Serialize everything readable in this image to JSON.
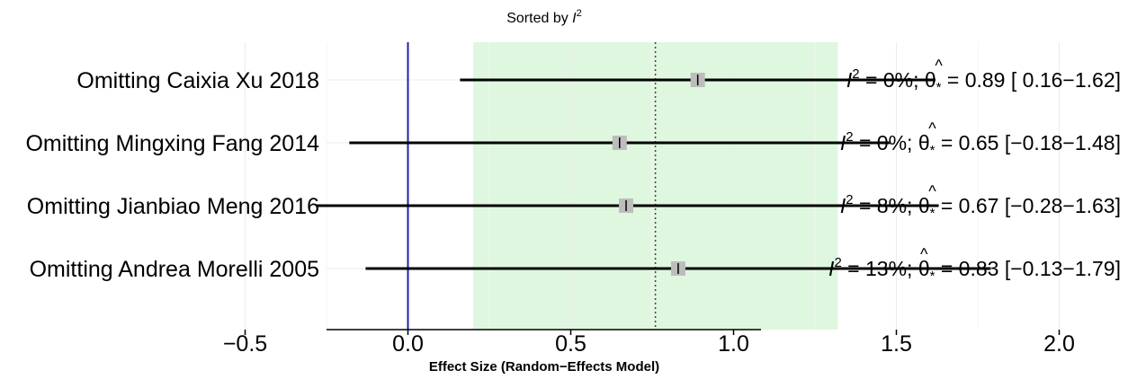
{
  "chart_data": {
    "type": "forest",
    "title": "Sorted by",
    "title_symbol": "I",
    "title_sup": "2",
    "xlabel": "Effect Size (Random−Effects Model)",
    "xlim": [
      -0.5,
      2.2
    ],
    "xticks": [
      -0.5,
      0.0,
      0.5,
      1.0,
      1.5,
      2.0
    ],
    "xtick_labels": [
      "−0.5",
      "0.0",
      "0.5",
      "1.0",
      "1.5",
      "2.0"
    ],
    "reference_line": 0.0,
    "pooled_estimate": 0.76,
    "pooled_interval": [
      0.2,
      1.32
    ],
    "grid": true,
    "colors": {
      "reference_line": "#2222aa",
      "band": "#dff7df",
      "marker": "#bdbdbd",
      "ci_line": "#000000",
      "grid": "#ebebeb"
    },
    "rows": [
      {
        "label": "Omitting Caixia Xu 2018",
        "est": 0.89,
        "lo": 0.16,
        "hi": 1.62,
        "i2": "0%",
        "i2_text": " =  0%; ",
        "theta": "θ",
        "star": "*",
        "annot_rest": " = 0.89 [ 0.16−1.62]"
      },
      {
        "label": "Omitting Mingxing Fang 2014",
        "est": 0.65,
        "lo": -0.18,
        "hi": 1.48,
        "i2": "0%",
        "i2_text": " =  0%; ",
        "theta": "θ",
        "star": "*",
        "annot_rest": " = 0.65 [−0.18−1.48]"
      },
      {
        "label": "Omitting Jianbiao Meng 2016",
        "est": 0.67,
        "lo": -0.28,
        "hi": 1.63,
        "i2": "8%",
        "i2_text": " =  8%; ",
        "theta": "θ",
        "star": "*",
        "annot_rest": " = 0.67 [−0.28−1.63]"
      },
      {
        "label": "Omitting Andrea Morelli 2005",
        "est": 0.83,
        "lo": -0.13,
        "hi": 1.79,
        "i2": "13%",
        "i2_text": " = 13%; ",
        "theta": "θ",
        "star": "*",
        "annot_rest": " = 0.83 [−0.13−1.79]"
      }
    ]
  }
}
